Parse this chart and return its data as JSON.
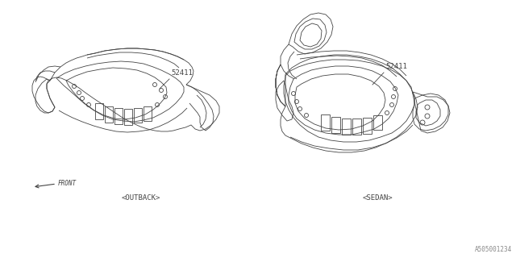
{
  "bg_color": "#ffffff",
  "line_color": "#444444",
  "text_color": "#444444",
  "part_number": "52411",
  "label_outback": "<OUTBACK>",
  "label_sedan": "<SEDAN>",
  "front_label": "FRONT",
  "catalog_number": "A505001234",
  "fig_width": 6.4,
  "fig_height": 3.2,
  "dpi": 100,
  "lw": 0.6
}
